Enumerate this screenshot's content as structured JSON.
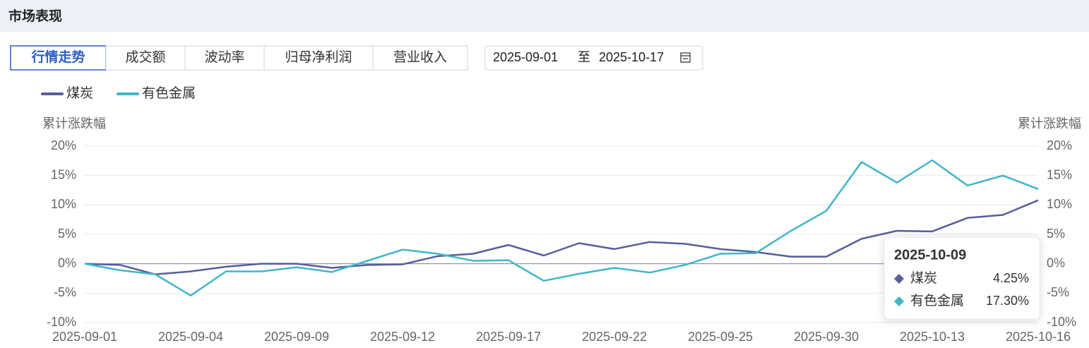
{
  "header": {
    "title": "市场表现"
  },
  "tabs": [
    {
      "label": "行情走势",
      "active": true
    },
    {
      "label": "成交额",
      "active": false
    },
    {
      "label": "波动率",
      "active": false
    },
    {
      "label": "归母净利润",
      "active": false
    },
    {
      "label": "营业收入",
      "active": false
    }
  ],
  "date_range": {
    "start": "2025-09-01",
    "separator": "至",
    "end": "2025-10-17"
  },
  "chart_data": {
    "type": "line",
    "y_label": "累计涨跌幅",
    "y2_label": "累计涨跌幅",
    "categories": [
      "2025-09-01",
      null,
      null,
      "2025-09-04",
      null,
      null,
      "2025-09-09",
      null,
      null,
      "2025-09-12",
      null,
      null,
      "2025-09-17",
      null,
      null,
      "2025-09-22",
      null,
      null,
      "2025-09-25",
      null,
      null,
      "2025-09-30",
      "2025-10-09",
      null,
      "2025-10-13",
      null,
      null,
      "2025-10-16"
    ],
    "series": [
      {
        "name": "煤炭",
        "color": "#565e9c",
        "values": [
          0,
          -0.2,
          -1.8,
          -1.3,
          -0.5,
          0,
          0,
          -0.7,
          -0.2,
          -0.1,
          1.3,
          1.7,
          3.2,
          1.4,
          3.5,
          2.5,
          3.7,
          3.4,
          2.5,
          2.0,
          1.2,
          1.2,
          4.25,
          5.6,
          5.5,
          7.8,
          8.3,
          10.8
        ],
        "value_labels": [
          null,
          null,
          null,
          null,
          null,
          null,
          null,
          null,
          null,
          null,
          null,
          null,
          null,
          null,
          null,
          null,
          null,
          null,
          null,
          null,
          null,
          null,
          "4.25%",
          null,
          null,
          null,
          null,
          null
        ]
      },
      {
        "name": "有色金属",
        "color": "#40b6ca",
        "values": [
          0,
          -1.1,
          -1.8,
          -5.4,
          -1.3,
          -1.3,
          -0.6,
          -1.4,
          0.5,
          2.4,
          1.7,
          0.5,
          0.6,
          -2.9,
          -1.7,
          -0.7,
          -1.5,
          -0.2,
          1.7,
          1.8,
          5.6,
          9.0,
          17.3,
          13.8,
          17.6,
          13.3,
          15.0,
          12.7
        ],
        "value_labels": [
          null,
          null,
          null,
          null,
          null,
          null,
          null,
          null,
          null,
          null,
          null,
          null,
          null,
          null,
          null,
          null,
          null,
          null,
          null,
          null,
          null,
          null,
          "17.30%",
          null,
          null,
          null,
          null,
          null
        ]
      }
    ],
    "ylim": [
      -10,
      20
    ],
    "yticks": [
      {
        "value": 20,
        "label": "20%"
      },
      {
        "value": 15,
        "label": "15%"
      },
      {
        "value": 10,
        "label": "10%"
      },
      {
        "value": 5,
        "label": "5%"
      },
      {
        "value": 0,
        "label": "0%"
      },
      {
        "value": -5,
        "label": "-5%"
      },
      {
        "value": -10,
        "label": "-10%"
      }
    ],
    "y2lim": [
      -10,
      20
    ],
    "y2ticks": [
      {
        "value": 20,
        "label": "20%"
      },
      {
        "value": 15,
        "label": "15%"
      },
      {
        "value": 10,
        "label": "10%"
      },
      {
        "value": 5,
        "label": "5%"
      },
      {
        "value": 0,
        "label": "0%"
      },
      {
        "value": -5,
        "label": "-5%"
      },
      {
        "value": -10,
        "label": "-10%"
      }
    ],
    "grid": true
  }
}
